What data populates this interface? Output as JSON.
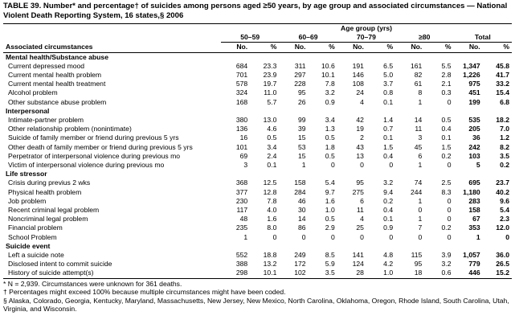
{
  "header": {
    "title": "TABLE 39. Number* and percentage† of suicides among persons aged ≥50 years, by age group and associated circumstances — National Violent Death Reporting System, 16 states,§ 2006"
  },
  "columns": {
    "group_label": "Age group (yrs)",
    "groups": [
      "50–59",
      "60–69",
      "70–79",
      "≥80",
      "Total"
    ],
    "stub": "Associated circumstances",
    "no": "No.",
    "pct": "%"
  },
  "table": {
    "sections": [
      {
        "title": "Mental health/Substance abuse",
        "rows": [
          {
            "label": "Current depressed mood",
            "values": [
              "684",
              "23.3",
              "311",
              "10.6",
              "191",
              "6.5",
              "161",
              "5.5",
              "1,347",
              "45.8"
            ]
          },
          {
            "label": "Current mental health problem",
            "values": [
              "701",
              "23.9",
              "297",
              "10.1",
              "146",
              "5.0",
              "82",
              "2.8",
              "1,226",
              "41.7"
            ]
          },
          {
            "label": "Current mental health treatment",
            "values": [
              "578",
              "19.7",
              "228",
              "7.8",
              "108",
              "3.7",
              "61",
              "2.1",
              "975",
              "33.2"
            ]
          },
          {
            "label": "Alcohol problem",
            "values": [
              "324",
              "11.0",
              "95",
              "3.2",
              "24",
              "0.8",
              "8",
              "0.3",
              "451",
              "15.4"
            ]
          },
          {
            "label": "Other substance abuse problem",
            "values": [
              "168",
              "5.7",
              "26",
              "0.9",
              "4",
              "0.1",
              "1",
              "0",
              "199",
              "6.8"
            ]
          }
        ]
      },
      {
        "title": "Interpersonal",
        "rows": [
          {
            "label": "Intimate-partner problem",
            "values": [
              "380",
              "13.0",
              "99",
              "3.4",
              "42",
              "1.4",
              "14",
              "0.5",
              "535",
              "18.2"
            ]
          },
          {
            "label": "Other relationship problem (nonintimate)",
            "values": [
              "136",
              "4.6",
              "39",
              "1.3",
              "19",
              "0.7",
              "11",
              "0.4",
              "205",
              "7.0"
            ]
          },
          {
            "label": "Suicide of family member or friend during previous 5 yrs",
            "values": [
              "16",
              "0.5",
              "15",
              "0.5",
              "2",
              "0.1",
              "3",
              "0.1",
              "36",
              "1.2"
            ]
          },
          {
            "label": "Other death of family member or friend during previous 5 yrs",
            "values": [
              "101",
              "3.4",
              "53",
              "1.8",
              "43",
              "1.5",
              "45",
              "1.5",
              "242",
              "8.2"
            ]
          },
          {
            "label": "Perpetrator of interpersonal violence during previous mo",
            "values": [
              "69",
              "2.4",
              "15",
              "0.5",
              "13",
              "0.4",
              "6",
              "0.2",
              "103",
              "3.5"
            ]
          },
          {
            "label": "Victim of interpersonal violence during previous mo",
            "values": [
              "3",
              "0.1",
              "1",
              "0",
              "0",
              "0",
              "1",
              "0",
              "5",
              "0.2"
            ]
          }
        ]
      },
      {
        "title": "Life stressor",
        "rows": [
          {
            "label": "Crisis during previus 2 wks",
            "values": [
              "368",
              "12.5",
              "158",
              "5.4",
              "95",
              "3.2",
              "74",
              "2.5",
              "695",
              "23.7"
            ]
          },
          {
            "label": "Physical health problem",
            "values": [
              "377",
              "12.8",
              "284",
              "9.7",
              "275",
              "9.4",
              "244",
              "8.3",
              "1,180",
              "40.2"
            ]
          },
          {
            "label": "Job problem",
            "values": [
              "230",
              "7.8",
              "46",
              "1.6",
              "6",
              "0.2",
              "1",
              "0",
              "283",
              "9.6"
            ]
          },
          {
            "label": "Recent criminal legal problem",
            "values": [
              "117",
              "4.0",
              "30",
              "1.0",
              "11",
              "0.4",
              "0",
              "0",
              "158",
              "5.4"
            ]
          },
          {
            "label": "Noncriminal legal problem",
            "values": [
              "48",
              "1.6",
              "14",
              "0.5",
              "4",
              "0.1",
              "1",
              "0",
              "67",
              "2.3"
            ]
          },
          {
            "label": "Financial problem",
            "values": [
              "235",
              "8.0",
              "86",
              "2.9",
              "25",
              "0.9",
              "7",
              "0.2",
              "353",
              "12.0"
            ]
          },
          {
            "label": "School Problem",
            "values": [
              "1",
              "0",
              "0",
              "0",
              "0",
              "0",
              "0",
              "0",
              "1",
              "0"
            ]
          }
        ]
      },
      {
        "title": "Suicide event",
        "rows": [
          {
            "label": "Left a suicide note",
            "values": [
              "552",
              "18.8",
              "249",
              "8.5",
              "141",
              "4.8",
              "115",
              "3.9",
              "1,057",
              "36.0"
            ]
          },
          {
            "label": "Disclosed intent to commit suicide",
            "values": [
              "388",
              "13.2",
              "172",
              "5.9",
              "124",
              "4.2",
              "95",
              "3.2",
              "779",
              "26.5"
            ]
          },
          {
            "label": "History of suicide attempt(s)",
            "values": [
              "298",
              "10.1",
              "102",
              "3.5",
              "28",
              "1.0",
              "18",
              "0.6",
              "446",
              "15.2"
            ]
          }
        ]
      }
    ]
  },
  "footnotes": [
    "* N = 2,939. Circumstances were unknown for 361 deaths.",
    "† Percentages might exceed 100% because multiple circumstances might have been coded.",
    "§ Alaska, Colorado, Georgia, Kentucky, Maryland, Massachusetts, New Jersey, New Mexico, North Carolina, Oklahoma, Oregon, Rhode Island, South Carolina, Utah, Virginia, and Wisconsin."
  ]
}
